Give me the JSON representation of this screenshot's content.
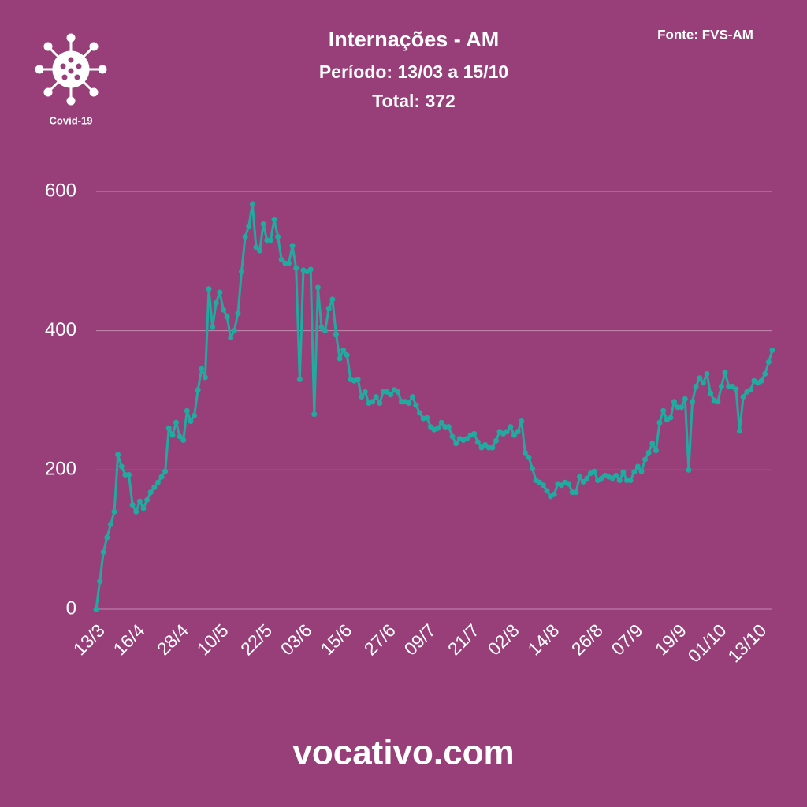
{
  "chart_data": {
    "type": "line",
    "title": "Internações - AM",
    "subtitle": "Período: 13/03 a 15/10",
    "total": "Total: 372",
    "source": "Fonte: FVS-AM",
    "badge": "Covid-19",
    "footer": "vocativo.com",
    "color": "#20aaa0",
    "grid": true,
    "ylim": [
      0,
      600
    ],
    "yticks": [
      0,
      200,
      400,
      600
    ],
    "categories": [
      "13/3",
      null,
      null,
      null,
      null,
      null,
      null,
      null,
      null,
      null,
      null,
      "16/4",
      null,
      null,
      null,
      null,
      null,
      null,
      null,
      null,
      null,
      null,
      null,
      "28/4",
      null,
      null,
      null,
      null,
      null,
      null,
      null,
      null,
      null,
      null,
      "10/5",
      null,
      null,
      null,
      null,
      null,
      null,
      null,
      null,
      null,
      null,
      null,
      "22/5",
      null,
      null,
      null,
      null,
      null,
      null,
      null,
      null,
      null,
      null,
      "03/6",
      null,
      null,
      null,
      null,
      null,
      null,
      null,
      null,
      null,
      null,
      "15/6",
      null,
      null,
      null,
      null,
      null,
      null,
      null,
      null,
      null,
      null,
      null,
      "27/6",
      null,
      null,
      null,
      null,
      null,
      null,
      null,
      null,
      null,
      null,
      "09/7",
      null,
      null,
      null,
      null,
      null,
      null,
      null,
      null,
      null,
      null,
      null,
      "21/7",
      null,
      null,
      null,
      null,
      null,
      null,
      null,
      null,
      null,
      null,
      "02/8",
      null,
      null,
      null,
      null,
      null,
      null,
      null,
      null,
      null,
      null,
      "14/8",
      null,
      null,
      null,
      null,
      null,
      null,
      null,
      null,
      null,
      null,
      null,
      "26/8",
      null,
      null,
      null,
      null,
      null,
      null,
      null,
      null,
      null,
      null,
      "07/9",
      null,
      null,
      null,
      null,
      null,
      null,
      null,
      null,
      null,
      null,
      null,
      "19/9",
      null,
      null,
      null,
      null,
      null,
      null,
      null,
      null,
      null,
      null,
      "01/10",
      null,
      null,
      null,
      null,
      null,
      null,
      null,
      null,
      null,
      null,
      "13/10",
      null,
      null,
      null,
      null
    ],
    "values": [
      0,
      40,
      82,
      103,
      122,
      140,
      222,
      205,
      193,
      193,
      150,
      140,
      155,
      145,
      157,
      168,
      175,
      182,
      190,
      198,
      260,
      250,
      268,
      248,
      243,
      285,
      270,
      278,
      315,
      345,
      333,
      460,
      405,
      440,
      455,
      430,
      420,
      390,
      400,
      425,
      485,
      535,
      550,
      582,
      520,
      515,
      553,
      530,
      530,
      560,
      535,
      502,
      497,
      497,
      522,
      490,
      330,
      487,
      485,
      488,
      280,
      462,
      405,
      400,
      432,
      445,
      395,
      360,
      372,
      365,
      330,
      328,
      330,
      305,
      312,
      296,
      298,
      305,
      296,
      313,
      312,
      308,
      315,
      312,
      298,
      298,
      296,
      305,
      293,
      282,
      274,
      275,
      262,
      258,
      260,
      268,
      262,
      262,
      248,
      238,
      245,
      243,
      245,
      250,
      252,
      240,
      232,
      236,
      232,
      232,
      242,
      255,
      252,
      255,
      262,
      250,
      255,
      270,
      225,
      218,
      202,
      185,
      182,
      178,
      170,
      162,
      165,
      180,
      178,
      182,
      180,
      168,
      168,
      190,
      183,
      188,
      195,
      198,
      185,
      188,
      192,
      190,
      188,
      192,
      185,
      197,
      185,
      185,
      197,
      205,
      198,
      215,
      225,
      238,
      228,
      268,
      285,
      272,
      275,
      298,
      290,
      290,
      302,
      200,
      298,
      320,
      332,
      325,
      338,
      310,
      300,
      298,
      320,
      340,
      320,
      320,
      316,
      256,
      305,
      312,
      315,
      328,
      325,
      328,
      338,
      355,
      372
    ]
  }
}
